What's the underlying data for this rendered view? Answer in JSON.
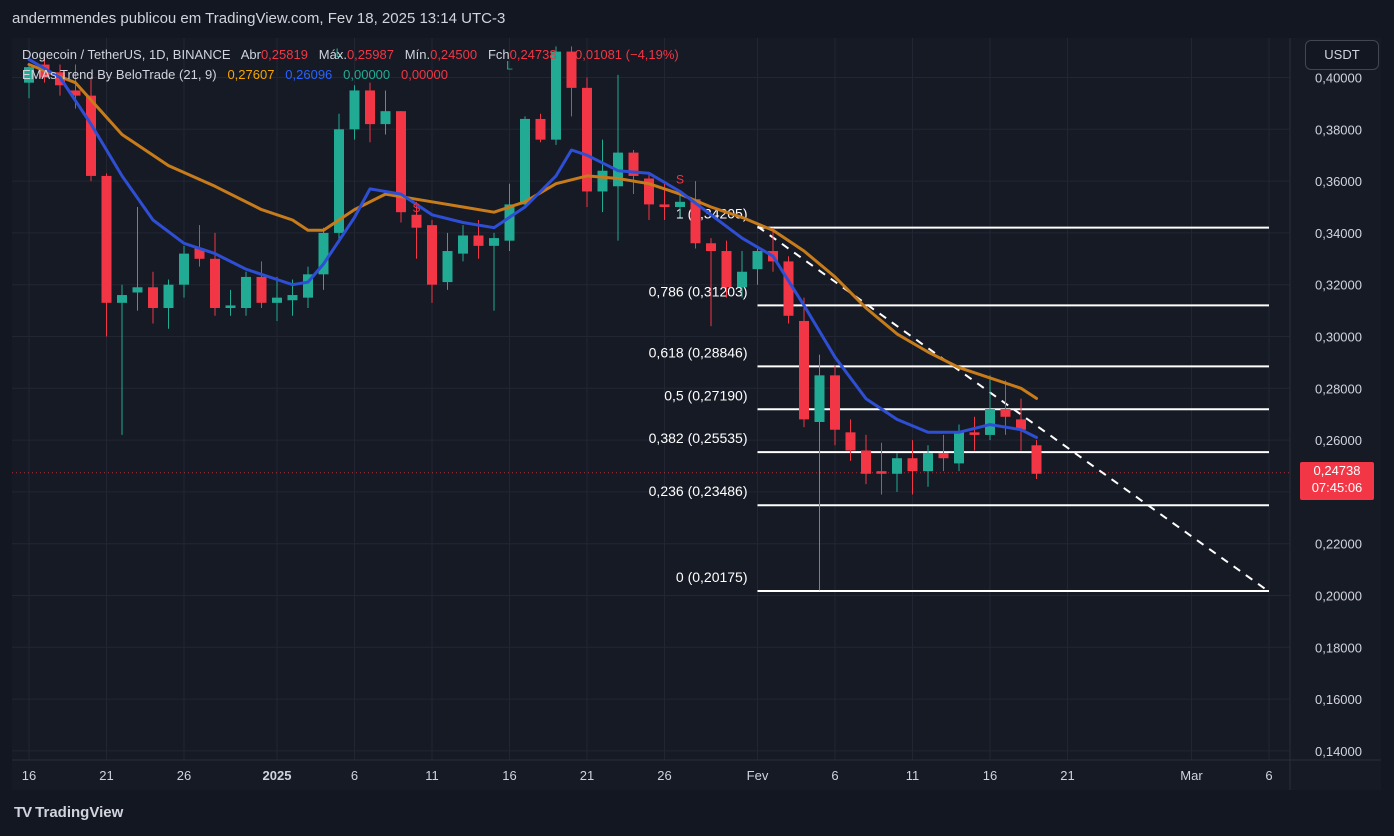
{
  "header": {
    "publisher_text": "andermmendes publicou em TradingView.com, Fev 18, 2025 13:14 UTC-3"
  },
  "legend": {
    "symbol": "Dogecoin / TetherUS, 1D, BINANCE",
    "open_label": "Abr",
    "open_value": "0,25819",
    "high_label": "Máx.",
    "high_value": "0,25987",
    "low_label": "Mín.",
    "low_value": "0,24500",
    "close_label": "Fch",
    "close_value": "0,24738",
    "change": "−0,01081 (−4,19%)",
    "indicator_name": "EMAs Trend By BeloTrade (21, 9)",
    "ind_v1": "0,27607",
    "ind_v2": "0,26096",
    "ind_v3": "0,00000",
    "ind_v4": "0,00000"
  },
  "currency_button": "USDT",
  "price_tag": {
    "price": "0,24738",
    "countdown": "07:45:06"
  },
  "branding": {
    "logo_text": "TradingView",
    "logo_mark": "TV"
  },
  "colors": {
    "up": "#22ab94",
    "down": "#f23645",
    "ema21": "#c77b1a",
    "ema9": "#2e4fd4",
    "fib_line": "#ffffff",
    "grid": "#222633",
    "text": "#d1d4dc"
  },
  "chart_data": {
    "type": "candlestick",
    "title": "Dogecoin / TetherUS, 1D, BINANCE",
    "ylim": [
      0.13,
      0.412
    ],
    "y_ticks": [
      "0,40000",
      "0,38000",
      "0,36000",
      "0,34000",
      "0,32000",
      "0,30000",
      "0,28000",
      "0,26000",
      "0,24000",
      "0,22000",
      "0,20000",
      "0,18000",
      "0,16000",
      "0,14000"
    ],
    "y_tick_values": [
      0.4,
      0.38,
      0.36,
      0.34,
      0.32,
      0.3,
      0.28,
      0.26,
      0.24,
      0.22,
      0.2,
      0.18,
      0.16,
      0.14
    ],
    "x_ticks": [
      {
        "day": 0,
        "label": "16"
      },
      {
        "day": 5,
        "label": "21"
      },
      {
        "day": 10,
        "label": "26"
      },
      {
        "day": 16,
        "label": "2025"
      },
      {
        "day": 21,
        "label": "6"
      },
      {
        "day": 26,
        "label": "11"
      },
      {
        "day": 31,
        "label": "16"
      },
      {
        "day": 36,
        "label": "21"
      },
      {
        "day": 41,
        "label": "26"
      },
      {
        "day": 47,
        "label": "Fev"
      },
      {
        "day": 52,
        "label": "6"
      },
      {
        "day": 57,
        "label": "11"
      },
      {
        "day": 62,
        "label": "16"
      },
      {
        "day": 67,
        "label": "21"
      },
      {
        "day": 75,
        "label": "Mar"
      },
      {
        "day": 80,
        "label": "6"
      }
    ],
    "candles": [
      {
        "d": 0,
        "o": 0.398,
        "h": 0.405,
        "l": 0.392,
        "c": 0.404
      },
      {
        "d": 1,
        "o": 0.405,
        "h": 0.41,
        "l": 0.398,
        "c": 0.4
      },
      {
        "d": 2,
        "o": 0.402,
        "h": 0.405,
        "l": 0.393,
        "c": 0.397
      },
      {
        "d": 3,
        "o": 0.395,
        "h": 0.405,
        "l": 0.388,
        "c": 0.393
      },
      {
        "d": 4,
        "o": 0.393,
        "h": 0.4,
        "l": 0.36,
        "c": 0.362
      },
      {
        "d": 5,
        "o": 0.362,
        "h": 0.363,
        "l": 0.3,
        "c": 0.313
      },
      {
        "d": 6,
        "o": 0.313,
        "h": 0.32,
        "l": 0.262,
        "c": 0.316
      },
      {
        "d": 7,
        "o": 0.317,
        "h": 0.35,
        "l": 0.31,
        "c": 0.319
      },
      {
        "d": 8,
        "o": 0.319,
        "h": 0.325,
        "l": 0.305,
        "c": 0.311
      },
      {
        "d": 9,
        "o": 0.311,
        "h": 0.322,
        "l": 0.303,
        "c": 0.32
      },
      {
        "d": 10,
        "o": 0.32,
        "h": 0.335,
        "l": 0.315,
        "c": 0.332
      },
      {
        "d": 11,
        "o": 0.334,
        "h": 0.343,
        "l": 0.327,
        "c": 0.33
      },
      {
        "d": 12,
        "o": 0.33,
        "h": 0.34,
        "l": 0.308,
        "c": 0.311
      },
      {
        "d": 13,
        "o": 0.311,
        "h": 0.318,
        "l": 0.308,
        "c": 0.312
      },
      {
        "d": 14,
        "o": 0.311,
        "h": 0.325,
        "l": 0.308,
        "c": 0.323
      },
      {
        "d": 15,
        "o": 0.323,
        "h": 0.329,
        "l": 0.311,
        "c": 0.313
      },
      {
        "d": 16,
        "o": 0.313,
        "h": 0.323,
        "l": 0.306,
        "c": 0.315
      },
      {
        "d": 17,
        "o": 0.314,
        "h": 0.322,
        "l": 0.308,
        "c": 0.316
      },
      {
        "d": 18,
        "o": 0.315,
        "h": 0.327,
        "l": 0.311,
        "c": 0.324
      },
      {
        "d": 19,
        "o": 0.324,
        "h": 0.342,
        "l": 0.318,
        "c": 0.34
      },
      {
        "d": 20,
        "o": 0.34,
        "h": 0.386,
        "l": 0.336,
        "c": 0.38
      },
      {
        "d": 21,
        "o": 0.38,
        "h": 0.397,
        "l": 0.376,
        "c": 0.395
      },
      {
        "d": 22,
        "o": 0.395,
        "h": 0.398,
        "l": 0.375,
        "c": 0.382
      },
      {
        "d": 23,
        "o": 0.382,
        "h": 0.395,
        "l": 0.378,
        "c": 0.387
      },
      {
        "d": 24,
        "o": 0.387,
        "h": 0.387,
        "l": 0.344,
        "c": 0.348
      },
      {
        "d": 25,
        "o": 0.347,
        "h": 0.352,
        "l": 0.33,
        "c": 0.342
      },
      {
        "d": 26,
        "o": 0.343,
        "h": 0.345,
        "l": 0.313,
        "c": 0.32
      },
      {
        "d": 27,
        "o": 0.321,
        "h": 0.34,
        "l": 0.318,
        "c": 0.333
      },
      {
        "d": 28,
        "o": 0.332,
        "h": 0.343,
        "l": 0.329,
        "c": 0.339
      },
      {
        "d": 29,
        "o": 0.339,
        "h": 0.345,
        "l": 0.33,
        "c": 0.335
      },
      {
        "d": 30,
        "o": 0.335,
        "h": 0.34,
        "l": 0.31,
        "c": 0.338
      },
      {
        "d": 31,
        "o": 0.337,
        "h": 0.359,
        "l": 0.333,
        "c": 0.351
      },
      {
        "d": 32,
        "o": 0.351,
        "h": 0.385,
        "l": 0.35,
        "c": 0.384
      },
      {
        "d": 33,
        "o": 0.384,
        "h": 0.386,
        "l": 0.375,
        "c": 0.376
      },
      {
        "d": 34,
        "o": 0.376,
        "h": 0.412,
        "l": 0.374,
        "c": 0.41
      },
      {
        "d": 35,
        "o": 0.41,
        "h": 0.412,
        "l": 0.385,
        "c": 0.396
      },
      {
        "d": 36,
        "o": 0.396,
        "h": 0.4,
        "l": 0.35,
        "c": 0.356
      },
      {
        "d": 37,
        "o": 0.356,
        "h": 0.376,
        "l": 0.348,
        "c": 0.364
      },
      {
        "d": 38,
        "o": 0.358,
        "h": 0.401,
        "l": 0.337,
        "c": 0.371
      },
      {
        "d": 39,
        "o": 0.371,
        "h": 0.372,
        "l": 0.355,
        "c": 0.362
      },
      {
        "d": 40,
        "o": 0.361,
        "h": 0.363,
        "l": 0.345,
        "c": 0.351
      },
      {
        "d": 41,
        "o": 0.351,
        "h": 0.359,
        "l": 0.345,
        "c": 0.35
      },
      {
        "d": 42,
        "o": 0.35,
        "h": 0.355,
        "l": 0.346,
        "c": 0.352
      },
      {
        "d": 43,
        "o": 0.353,
        "h": 0.36,
        "l": 0.334,
        "c": 0.336
      },
      {
        "d": 44,
        "o": 0.336,
        "h": 0.338,
        "l": 0.304,
        "c": 0.333
      },
      {
        "d": 45,
        "o": 0.333,
        "h": 0.337,
        "l": 0.315,
        "c": 0.319
      },
      {
        "d": 46,
        "o": 0.319,
        "h": 0.333,
        "l": 0.315,
        "c": 0.325
      },
      {
        "d": 47,
        "o": 0.326,
        "h": 0.335,
        "l": 0.32,
        "c": 0.333
      },
      {
        "d": 48,
        "o": 0.333,
        "h": 0.342,
        "l": 0.325,
        "c": 0.329
      },
      {
        "d": 49,
        "o": 0.329,
        "h": 0.331,
        "l": 0.305,
        "c": 0.308
      },
      {
        "d": 50,
        "o": 0.306,
        "h": 0.315,
        "l": 0.265,
        "c": 0.268
      },
      {
        "d": 51,
        "o": 0.267,
        "h": 0.293,
        "l": 0.202,
        "c": 0.285
      },
      {
        "d": 52,
        "o": 0.285,
        "h": 0.289,
        "l": 0.258,
        "c": 0.264
      },
      {
        "d": 53,
        "o": 0.263,
        "h": 0.268,
        "l": 0.252,
        "c": 0.256
      },
      {
        "d": 54,
        "o": 0.256,
        "h": 0.262,
        "l": 0.243,
        "c": 0.247
      },
      {
        "d": 55,
        "o": 0.248,
        "h": 0.259,
        "l": 0.239,
        "c": 0.247
      },
      {
        "d": 56,
        "o": 0.247,
        "h": 0.255,
        "l": 0.24,
        "c": 0.253
      },
      {
        "d": 57,
        "o": 0.253,
        "h": 0.26,
        "l": 0.239,
        "c": 0.248
      },
      {
        "d": 58,
        "o": 0.248,
        "h": 0.258,
        "l": 0.242,
        "c": 0.255
      },
      {
        "d": 59,
        "o": 0.255,
        "h": 0.262,
        "l": 0.248,
        "c": 0.253
      },
      {
        "d": 60,
        "o": 0.251,
        "h": 0.266,
        "l": 0.248,
        "c": 0.263
      },
      {
        "d": 61,
        "o": 0.263,
        "h": 0.269,
        "l": 0.256,
        "c": 0.262
      },
      {
        "d": 62,
        "o": 0.262,
        "h": 0.285,
        "l": 0.26,
        "c": 0.272
      },
      {
        "d": 63,
        "o": 0.272,
        "h": 0.283,
        "l": 0.262,
        "c": 0.269
      },
      {
        "d": 64,
        "o": 0.268,
        "h": 0.276,
        "l": 0.256,
        "c": 0.264
      },
      {
        "d": 65,
        "o": 0.258,
        "h": 0.26,
        "l": 0.245,
        "c": 0.247
      }
    ],
    "ema21": [
      [
        0,
        0.405
      ],
      [
        3,
        0.398
      ],
      [
        6,
        0.378
      ],
      [
        9,
        0.366
      ],
      [
        12,
        0.358
      ],
      [
        15,
        0.349
      ],
      [
        17,
        0.345
      ],
      [
        18,
        0.341
      ],
      [
        19,
        0.341
      ],
      [
        21,
        0.349
      ],
      [
        23,
        0.355
      ],
      [
        26,
        0.352
      ],
      [
        28,
        0.35
      ],
      [
        30,
        0.348
      ],
      [
        32,
        0.352
      ],
      [
        34,
        0.359
      ],
      [
        36,
        0.362
      ],
      [
        38,
        0.361
      ],
      [
        40,
        0.359
      ],
      [
        42,
        0.355
      ],
      [
        44,
        0.35
      ],
      [
        46,
        0.346
      ],
      [
        48,
        0.341
      ],
      [
        50,
        0.333
      ],
      [
        52,
        0.323
      ],
      [
        54,
        0.311
      ],
      [
        56,
        0.301
      ],
      [
        58,
        0.294
      ],
      [
        60,
        0.288
      ],
      [
        62,
        0.284
      ],
      [
        64,
        0.28
      ],
      [
        65,
        0.2761
      ]
    ],
    "ema9": [
      [
        0,
        0.407
      ],
      [
        2,
        0.4
      ],
      [
        4,
        0.382
      ],
      [
        6,
        0.362
      ],
      [
        8,
        0.345
      ],
      [
        10,
        0.336
      ],
      [
        12,
        0.332
      ],
      [
        14,
        0.326
      ],
      [
        16,
        0.322
      ],
      [
        17,
        0.32
      ],
      [
        18,
        0.321
      ],
      [
        19,
        0.328
      ],
      [
        21,
        0.346
      ],
      [
        22,
        0.357
      ],
      [
        24,
        0.355
      ],
      [
        26,
        0.347
      ],
      [
        28,
        0.344
      ],
      [
        30,
        0.342
      ],
      [
        32,
        0.35
      ],
      [
        34,
        0.362
      ],
      [
        35,
        0.372
      ],
      [
        36,
        0.37
      ],
      [
        38,
        0.364
      ],
      [
        40,
        0.363
      ],
      [
        42,
        0.356
      ],
      [
        44,
        0.347
      ],
      [
        46,
        0.338
      ],
      [
        48,
        0.331
      ],
      [
        50,
        0.312
      ],
      [
        52,
        0.292
      ],
      [
        54,
        0.276
      ],
      [
        56,
        0.268
      ],
      [
        58,
        0.263
      ],
      [
        60,
        0.263
      ],
      [
        62,
        0.266
      ],
      [
        64,
        0.264
      ],
      [
        65,
        0.261
      ]
    ],
    "signals": [
      {
        "d": 20,
        "price": 0.408,
        "text": "L",
        "color": "#22ab94"
      },
      {
        "d": 31,
        "price": 0.403,
        "text": "L",
        "color": "#22ab94"
      },
      {
        "d": 25,
        "price": 0.348,
        "text": "S",
        "color": "#f23645"
      },
      {
        "d": 42,
        "price": 0.359,
        "text": "S",
        "color": "#f23645"
      }
    ],
    "fibonacci": {
      "start_day": 47,
      "end_day": 80,
      "levels": [
        {
          "ratio": "1",
          "price": 0.34205,
          "label": "1 (0,34205)"
        },
        {
          "ratio": "0.786",
          "price": 0.31203,
          "label": "0,786 (0,31203)"
        },
        {
          "ratio": "0.618",
          "price": 0.28846,
          "label": "0,618 (0,28846)"
        },
        {
          "ratio": "0.5",
          "price": 0.2719,
          "label": "0,5 (0,27190)"
        },
        {
          "ratio": "0.382",
          "price": 0.25535,
          "label": "0,382 (0,25535)"
        },
        {
          "ratio": "0.236",
          "price": 0.23486,
          "label": "0,236 (0,23486)"
        },
        {
          "ratio": "0",
          "price": 0.20175,
          "label": "0 (0,20175)"
        }
      ]
    },
    "trendline": {
      "from": [
        47,
        0.3425
      ],
      "to": [
        80,
        0.2015
      ]
    },
    "last_price": 0.24738
  }
}
